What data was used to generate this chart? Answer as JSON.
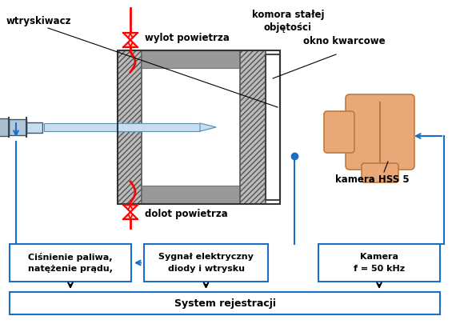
{
  "bg_color": "#ffffff",
  "blue": "#1a6fc4",
  "red": "#ff0000",
  "blk": "#000000",
  "gray_dark": "#555555",
  "gray_mid": "#999999",
  "gray_light": "#bbbbbb",
  "orange": "#e8a878",
  "orange_dark": "#c07840",
  "label_wtryskiwacz": "wtryskiwacz",
  "label_wylot": "wylot powietrza",
  "label_dolot": "dolot powietrza",
  "label_komora1": "komora stałej",
  "label_komora2": "objętości",
  "label_okno": "okno kwarcowe",
  "label_kamera_hss": "kamera HSS 5",
  "label_cisnienie1": "Ciśnienie paliwa,",
  "label_cisnienie2": "natężenie prądu,",
  "label_sygnal1": "Sygnał elektryczny",
  "label_sygnal2": "diody i wtrysku",
  "label_kamera_f1": "Kamera",
  "label_kamera_f2": "f = 50 kHz",
  "label_system": "System rejestracji"
}
